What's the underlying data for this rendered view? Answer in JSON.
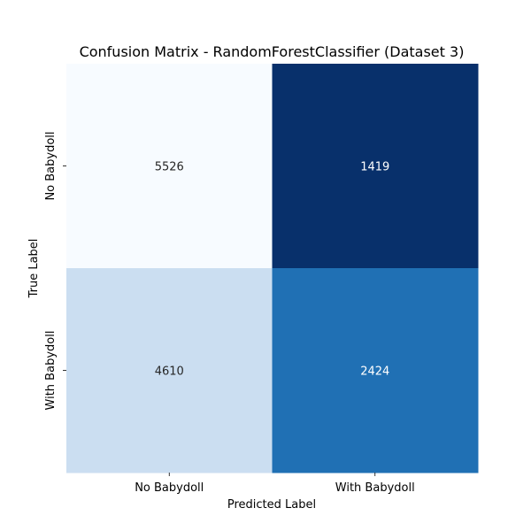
{
  "chart_data": {
    "type": "heatmap",
    "title": "Confusion Matrix - RandomForestClassifier (Dataset 3)",
    "xlabel": "Predicted Label",
    "ylabel": "True Label",
    "x_categories": [
      "No Babydoll",
      "With Babydoll"
    ],
    "y_categories": [
      "No Babydoll",
      "With Babydoll"
    ],
    "values": [
      [
        5526,
        1419
      ],
      [
        4610,
        2424
      ]
    ],
    "colormap": "Blues",
    "colorbar": false,
    "colors": {
      "low": "#f7fbff",
      "light": "#c6dbef",
      "medium": "#2171b5",
      "high": "#08306b"
    }
  }
}
